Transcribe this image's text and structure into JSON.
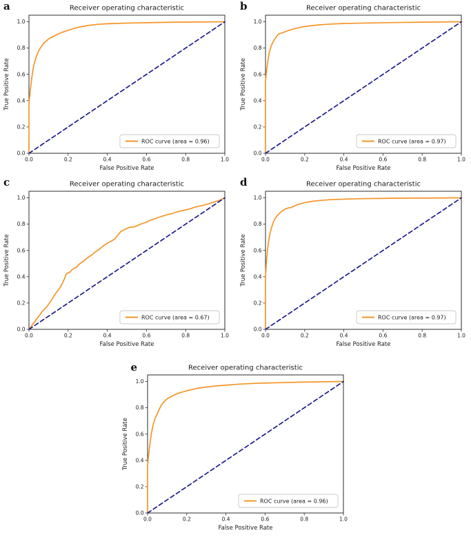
{
  "figure": {
    "colors": {
      "roc_curve": "#f59426",
      "chance_line": "#1a1a8e",
      "axis": "#2b2b2b",
      "text": "#1a1a1a",
      "legend_border": "#c8c8c8",
      "background": "#ffffff"
    }
  },
  "chart_data": [
    {
      "type": "line",
      "panel_label": "a",
      "title": "Receiver operating characteristic",
      "xlabel": "False Positive Rate",
      "ylabel": "True Positive Rate",
      "xlim": [
        0.0,
        1.0
      ],
      "ylim": [
        0.0,
        1.05
      ],
      "xticks": [
        "0.0",
        "0.2",
        "0.4",
        "0.6",
        "0.8",
        "1.0"
      ],
      "yticks": [
        "0.0",
        "0.2",
        "0.4",
        "0.6",
        "0.8",
        "1.0"
      ],
      "grid": false,
      "auc": 0.96,
      "legend": {
        "label": "ROC curve (area = 0.96)",
        "position": "lower right"
      },
      "series": [
        {
          "name": "ROC curve",
          "style": "solid",
          "color_key": "roc_curve",
          "points": [
            [
              0,
              0
            ],
            [
              0,
              0.38
            ],
            [
              0.005,
              0.45
            ],
            [
              0.01,
              0.52
            ],
            [
              0.015,
              0.58
            ],
            [
              0.02,
              0.63
            ],
            [
              0.025,
              0.67
            ],
            [
              0.03,
              0.7
            ],
            [
              0.04,
              0.745
            ],
            [
              0.05,
              0.78
            ],
            [
              0.06,
              0.805
            ],
            [
              0.07,
              0.825
            ],
            [
              0.08,
              0.845
            ],
            [
              0.09,
              0.855
            ],
            [
              0.1,
              0.87
            ],
            [
              0.12,
              0.885
            ],
            [
              0.14,
              0.9
            ],
            [
              0.16,
              0.915
            ],
            [
              0.18,
              0.925
            ],
            [
              0.2,
              0.935
            ],
            [
              0.23,
              0.95
            ],
            [
              0.26,
              0.96
            ],
            [
              0.3,
              0.972
            ],
            [
              0.35,
              0.98
            ],
            [
              0.4,
              0.985
            ],
            [
              0.5,
              0.99
            ],
            [
              0.6,
              0.993
            ],
            [
              0.75,
              0.997
            ],
            [
              1,
              1
            ]
          ]
        },
        {
          "name": "Chance diagonal",
          "style": "dashed",
          "color_key": "chance_line",
          "points": [
            [
              0,
              0
            ],
            [
              1,
              1
            ]
          ]
        }
      ]
    },
    {
      "type": "line",
      "panel_label": "b",
      "title": "Receiver operating characteristic",
      "xlabel": "False Positive Rate",
      "ylabel": "True Positive Rate",
      "xlim": [
        0.0,
        1.0
      ],
      "ylim": [
        0.0,
        1.05
      ],
      "xticks": [
        "0.0",
        "0.2",
        "0.4",
        "0.6",
        "0.8",
        "1.0"
      ],
      "yticks": [
        "0.0",
        "0.2",
        "0.4",
        "0.6",
        "0.8",
        "1.0"
      ],
      "grid": false,
      "auc": 0.97,
      "legend": {
        "label": "ROC curve (area = 0.97)",
        "position": "lower right"
      },
      "series": [
        {
          "name": "ROC curve",
          "style": "solid",
          "color_key": "roc_curve",
          "points": [
            [
              0,
              0
            ],
            [
              0,
              0.55
            ],
            [
              0.005,
              0.62
            ],
            [
              0.01,
              0.68
            ],
            [
              0.015,
              0.73
            ],
            [
              0.02,
              0.77
            ],
            [
              0.03,
              0.82
            ],
            [
              0.04,
              0.85
            ],
            [
              0.05,
              0.875
            ],
            [
              0.06,
              0.895
            ],
            [
              0.07,
              0.91
            ],
            [
              0.09,
              0.917
            ],
            [
              0.1,
              0.925
            ],
            [
              0.12,
              0.935
            ],
            [
              0.15,
              0.948
            ],
            [
              0.18,
              0.958
            ],
            [
              0.22,
              0.968
            ],
            [
              0.27,
              0.976
            ],
            [
              0.33,
              0.982
            ],
            [
              0.4,
              0.987
            ],
            [
              0.5,
              0.99
            ],
            [
              0.65,
              0.994
            ],
            [
              0.8,
              0.997
            ],
            [
              1,
              1
            ]
          ]
        },
        {
          "name": "Chance diagonal",
          "style": "dashed",
          "color_key": "chance_line",
          "points": [
            [
              0,
              0
            ],
            [
              1,
              1
            ]
          ]
        }
      ]
    },
    {
      "type": "line",
      "panel_label": "c",
      "title": "Receiver operating characteristic",
      "xlabel": "False Positive Rate",
      "ylabel": "True Positive Rate",
      "xlim": [
        0.0,
        1.0
      ],
      "ylim": [
        0.0,
        1.05
      ],
      "xticks": [
        "0.0",
        "0.2",
        "0.4",
        "0.6",
        "0.8",
        "1.0"
      ],
      "yticks": [
        "0.0",
        "0.2",
        "0.4",
        "0.6",
        "0.8",
        "1.0"
      ],
      "grid": false,
      "auc": 0.67,
      "legend": {
        "label": "ROC curve (area = 0.67)",
        "position": "lower right"
      },
      "series": [
        {
          "name": "ROC curve",
          "style": "solid",
          "color_key": "roc_curve",
          "points": [
            [
              0,
              0
            ],
            [
              0.01,
              0.02
            ],
            [
              0.03,
              0.06
            ],
            [
              0.05,
              0.1
            ],
            [
              0.07,
              0.14
            ],
            [
              0.09,
              0.17
            ],
            [
              0.11,
              0.21
            ],
            [
              0.13,
              0.26
            ],
            [
              0.14,
              0.28
            ],
            [
              0.16,
              0.32
            ],
            [
              0.17,
              0.35
            ],
            [
              0.18,
              0.38
            ],
            [
              0.19,
              0.42
            ],
            [
              0.2,
              0.43
            ],
            [
              0.21,
              0.435
            ],
            [
              0.22,
              0.455
            ],
            [
              0.24,
              0.47
            ],
            [
              0.26,
              0.5
            ],
            [
              0.28,
              0.52
            ],
            [
              0.3,
              0.545
            ],
            [
              0.32,
              0.565
            ],
            [
              0.34,
              0.59
            ],
            [
              0.36,
              0.61
            ],
            [
              0.38,
              0.635
            ],
            [
              0.4,
              0.655
            ],
            [
              0.42,
              0.67
            ],
            [
              0.44,
              0.69
            ],
            [
              0.45,
              0.71
            ],
            [
              0.47,
              0.745
            ],
            [
              0.49,
              0.76
            ],
            [
              0.51,
              0.775
            ],
            [
              0.54,
              0.78
            ],
            [
              0.57,
              0.8
            ],
            [
              0.6,
              0.815
            ],
            [
              0.62,
              0.83
            ],
            [
              0.64,
              0.84
            ],
            [
              0.67,
              0.855
            ],
            [
              0.7,
              0.87
            ],
            [
              0.73,
              0.88
            ],
            [
              0.76,
              0.895
            ],
            [
              0.79,
              0.905
            ],
            [
              0.82,
              0.915
            ],
            [
              0.85,
              0.93
            ],
            [
              0.88,
              0.94
            ],
            [
              0.91,
              0.952
            ],
            [
              0.94,
              0.965
            ],
            [
              0.97,
              0.98
            ],
            [
              1,
              1
            ]
          ]
        },
        {
          "name": "Chance diagonal",
          "style": "dashed",
          "color_key": "chance_line",
          "points": [
            [
              0,
              0
            ],
            [
              1,
              1
            ]
          ]
        }
      ]
    },
    {
      "type": "line",
      "panel_label": "d",
      "title": "Receiver operating characteristic",
      "xlabel": "False Positive Rate",
      "ylabel": "True Positive Rate",
      "xlim": [
        0.0,
        1.0
      ],
      "ylim": [
        0.0,
        1.05
      ],
      "xticks": [
        "0.0",
        "0.2",
        "0.4",
        "0.6",
        "0.8",
        "1.0"
      ],
      "yticks": [
        "0.0",
        "0.2",
        "0.4",
        "0.6",
        "0.8",
        "1.0"
      ],
      "grid": false,
      "auc": 0.97,
      "legend": {
        "label": "ROC curve (area = 0.97)",
        "position": "lower right"
      },
      "series": [
        {
          "name": "ROC curve",
          "style": "solid",
          "color_key": "roc_curve",
          "points": [
            [
              0,
              0
            ],
            [
              0,
              0.4
            ],
            [
              0.005,
              0.52
            ],
            [
              0.01,
              0.6
            ],
            [
              0.015,
              0.66
            ],
            [
              0.02,
              0.71
            ],
            [
              0.03,
              0.77
            ],
            [
              0.04,
              0.815
            ],
            [
              0.05,
              0.845
            ],
            [
              0.06,
              0.865
            ],
            [
              0.07,
              0.88
            ],
            [
              0.08,
              0.895
            ],
            [
              0.09,
              0.905
            ],
            [
              0.1,
              0.915
            ],
            [
              0.11,
              0.92
            ],
            [
              0.12,
              0.925
            ],
            [
              0.13,
              0.925
            ],
            [
              0.15,
              0.94
            ],
            [
              0.17,
              0.952
            ],
            [
              0.2,
              0.963
            ],
            [
              0.24,
              0.974
            ],
            [
              0.28,
              0.98
            ],
            [
              0.33,
              0.986
            ],
            [
              0.4,
              0.99
            ],
            [
              0.5,
              0.994
            ],
            [
              0.65,
              0.997
            ],
            [
              1,
              1
            ]
          ]
        },
        {
          "name": "Chance diagonal",
          "style": "dashed",
          "color_key": "chance_line",
          "points": [
            [
              0,
              0
            ],
            [
              1,
              1
            ]
          ]
        }
      ]
    },
    {
      "type": "line",
      "panel_label": "e",
      "title": "Receiver operating characteristic",
      "xlabel": "False Positive Rate",
      "ylabel": "True Positive Rate",
      "xlim": [
        0.0,
        1.0
      ],
      "ylim": [
        0.0,
        1.05
      ],
      "xticks": [
        "0.0",
        "0.2",
        "0.4",
        "0.6",
        "0.8",
        "1.0"
      ],
      "yticks": [
        "0.0",
        "0.2",
        "0.4",
        "0.6",
        "0.8",
        "1.0"
      ],
      "grid": false,
      "auc": 0.96,
      "legend": {
        "label": "ROC curve (area = 0.96)",
        "position": "lower right"
      },
      "series": [
        {
          "name": "ROC curve",
          "style": "solid",
          "color_key": "roc_curve",
          "points": [
            [
              0,
              0
            ],
            [
              0,
              0.36
            ],
            [
              0.005,
              0.44
            ],
            [
              0.01,
              0.5
            ],
            [
              0.015,
              0.56
            ],
            [
              0.02,
              0.61
            ],
            [
              0.03,
              0.68
            ],
            [
              0.04,
              0.725
            ],
            [
              0.05,
              0.755
            ],
            [
              0.06,
              0.79
            ],
            [
              0.07,
              0.82
            ],
            [
              0.08,
              0.84
            ],
            [
              0.09,
              0.855
            ],
            [
              0.1,
              0.868
            ],
            [
              0.12,
              0.885
            ],
            [
              0.14,
              0.9
            ],
            [
              0.16,
              0.912
            ],
            [
              0.19,
              0.925
            ],
            [
              0.22,
              0.936
            ],
            [
              0.26,
              0.95
            ],
            [
              0.3,
              0.958
            ],
            [
              0.35,
              0.966
            ],
            [
              0.4,
              0.972
            ],
            [
              0.47,
              0.98
            ],
            [
              0.55,
              0.986
            ],
            [
              0.65,
              0.99
            ],
            [
              0.78,
              0.995
            ],
            [
              1,
              1
            ]
          ]
        },
        {
          "name": "Chance diagonal",
          "style": "dashed",
          "color_key": "chance_line",
          "points": [
            [
              0,
              0
            ],
            [
              1,
              1
            ]
          ]
        }
      ]
    }
  ]
}
